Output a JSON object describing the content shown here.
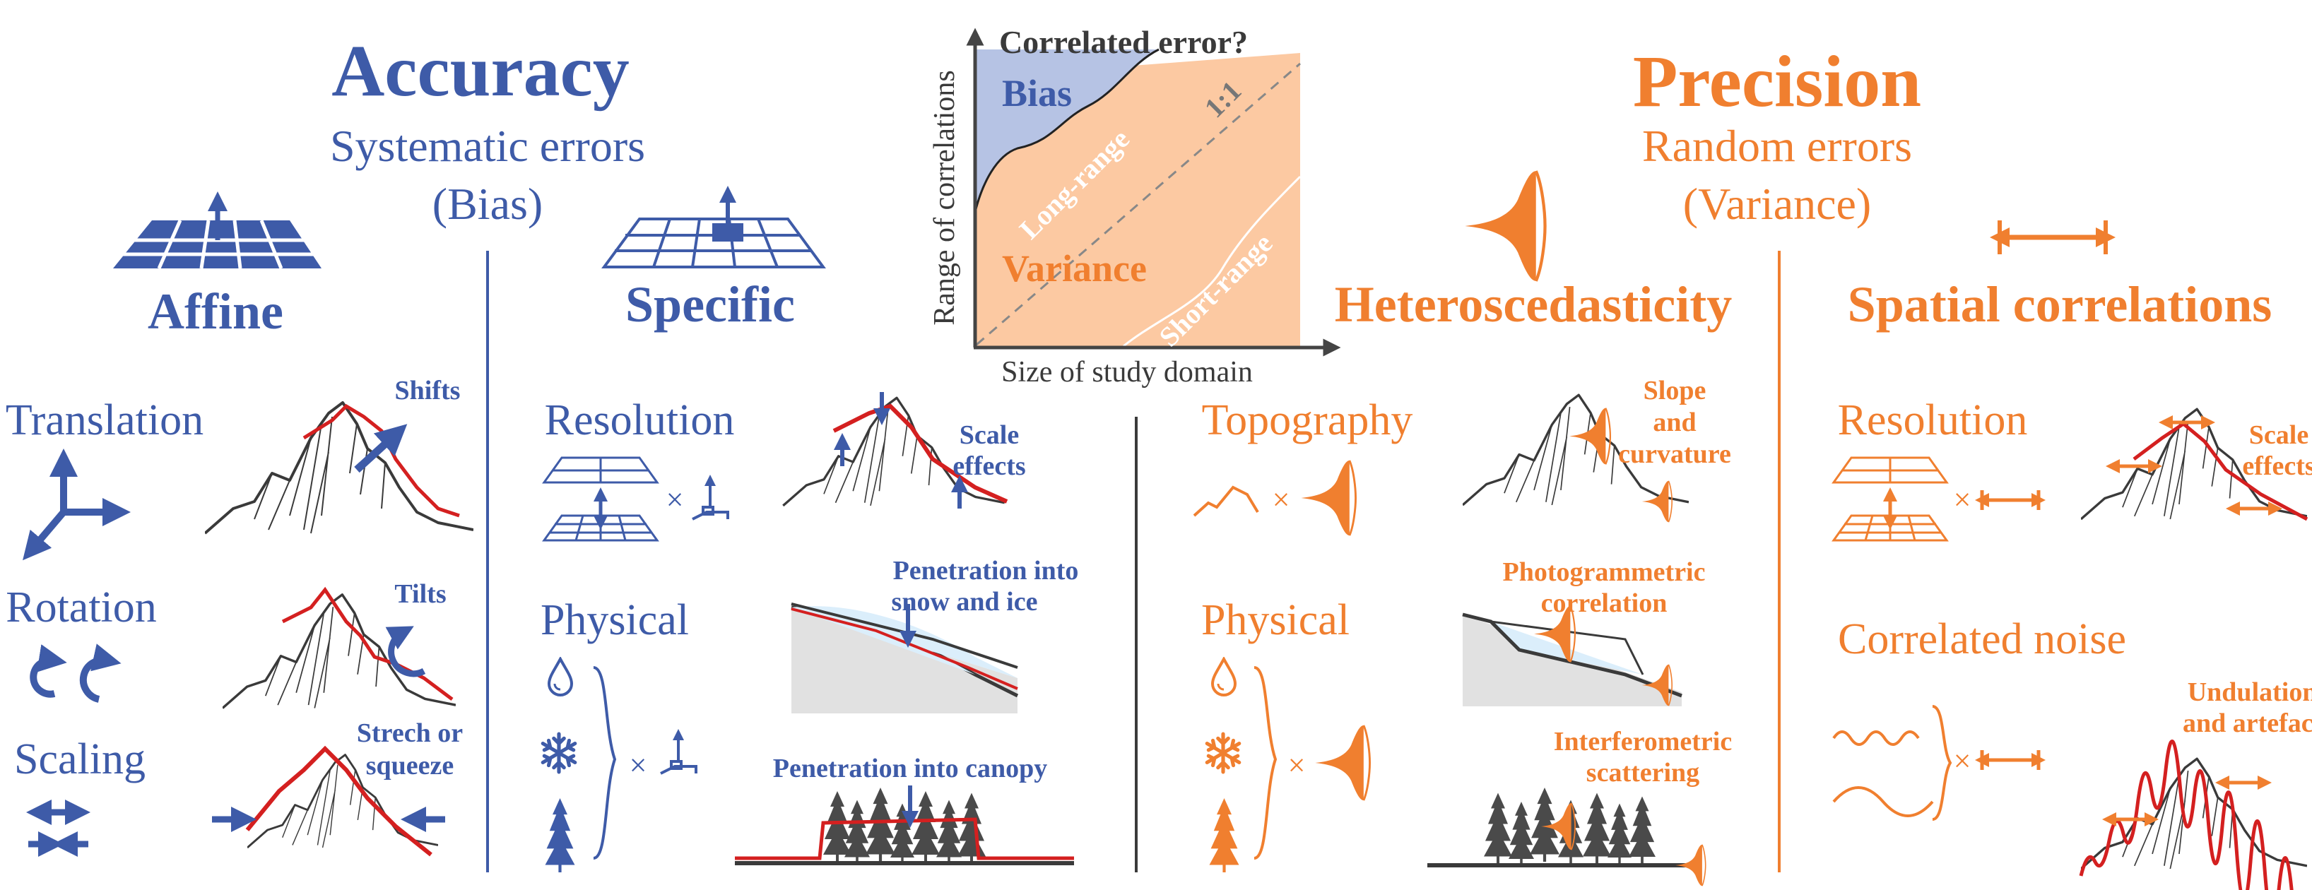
{
  "colors": {
    "blue": "#3e5ba8",
    "orange": "#f07f2f",
    "red": "#d42020",
    "dark": "#3a3a3a",
    "gray": "#555555",
    "bias_fill": "#b6c3e4",
    "variance_fill": "#fcc9a2",
    "ice": "#dbeefb",
    "ground": "#e1e1e1"
  },
  "accuracy": {
    "title": "Accuracy",
    "subtitle1": "Systematic errors",
    "subtitle2": "(Bias)"
  },
  "precision": {
    "title": "Precision",
    "subtitle1": "Random errors",
    "subtitle2": "(Variance)"
  },
  "affine": {
    "heading": "Affine",
    "translation": "Translation",
    "rotation": "Rotation",
    "scaling": "Scaling",
    "shifts": "Shifts",
    "tilts": "Tilts",
    "stretch1": "Strech or",
    "stretch2": "squeeze"
  },
  "specific": {
    "heading": "Specific",
    "resolution": "Resolution",
    "scale1": "Scale",
    "scale2": "effects",
    "physical": "Physical",
    "pen_snow1": "Penetration into",
    "pen_snow2": "snow and ice",
    "pen_canopy": "Penetration into canopy"
  },
  "hetero": {
    "heading": "Heteroscedasticity",
    "topography": "Topography",
    "slope1": "Slope",
    "slope2": "and",
    "slope3": "curvature",
    "physical": "Physical",
    "photo1": "Photogrammetric",
    "photo2": "correlation",
    "inter1": "Interferometric",
    "inter2": "scattering"
  },
  "spatial": {
    "heading": "Spatial correlations",
    "resolution": "Resolution",
    "scale1": "Scale",
    "scale2": "effects",
    "noise": "Correlated noise",
    "und1": "Undulations",
    "und2": "and artefacts"
  },
  "chart": {
    "title": "Correlated error?",
    "xlabel": "Size of study domain",
    "ylabel": "Range of correlations",
    "bias": "Bias",
    "variance": "Variance",
    "long_range": "Long-range",
    "short_range": "Short-range",
    "one_to_one": "1:1"
  },
  "glyphs": {
    "times": "×"
  }
}
